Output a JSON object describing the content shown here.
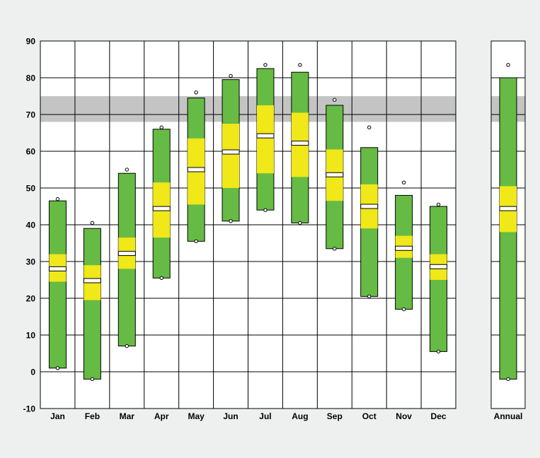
{
  "chart_data": {
    "type": "bar",
    "subtype": "floating-range-bar",
    "title": "",
    "xlabel": "",
    "ylabel": "",
    "ylim": [
      -10,
      90
    ],
    "yticks": [
      -10,
      0,
      10,
      20,
      30,
      40,
      50,
      60,
      70,
      80,
      90
    ],
    "grid": true,
    "comfort_band": [
      68,
      75
    ],
    "categories": [
      "Jan",
      "Feb",
      "Mar",
      "Apr",
      "May",
      "Jun",
      "Jul",
      "Aug",
      "Sep",
      "Oct",
      "Nov",
      "Dec"
    ],
    "series": [
      {
        "name": "record_low",
        "values": [
          1,
          -2,
          7,
          25.5,
          35.5,
          41,
          44,
          40.5,
          33.5,
          20.5,
          17,
          5.5
        ]
      },
      {
        "name": "range_low",
        "values": [
          1,
          -2,
          7,
          25.5,
          35.5,
          41,
          44,
          40.5,
          33.5,
          20.5,
          17,
          5.5
        ]
      },
      {
        "name": "mid_low",
        "values": [
          24.5,
          19.5,
          28,
          36.5,
          45.5,
          50,
          54,
          53,
          46.5,
          39,
          31,
          25
        ]
      },
      {
        "name": "mean",
        "values": [
          28,
          24.8,
          32.2,
          44.4,
          55,
          59.8,
          64.2,
          62.2,
          53.6,
          45,
          33.6,
          28.6
        ]
      },
      {
        "name": "mid_high",
        "values": [
          32,
          29,
          36.5,
          51.5,
          63.5,
          67.5,
          72.5,
          70.5,
          60.5,
          51,
          37,
          32
        ]
      },
      {
        "name": "range_high",
        "values": [
          46.5,
          39,
          54,
          66,
          74.5,
          79.5,
          82.5,
          81.5,
          72.5,
          61,
          48,
          45
        ]
      },
      {
        "name": "record_high",
        "values": [
          47,
          40.5,
          55,
          66.5,
          76,
          80.5,
          83.5,
          83.5,
          74,
          66.5,
          51.5,
          45.5
        ]
      }
    ],
    "annual": {
      "category": "Annual",
      "record_low": -2,
      "range_low": -2,
      "mid_low": 38,
      "mean": 44.4,
      "mid_high": 50.5,
      "range_high": 80,
      "record_high": 83.5
    },
    "colors": {
      "range": "#66bb44",
      "mid": "#f0e818",
      "band": "#c4c4c4",
      "grid": "#000000",
      "background": "#ffffff"
    }
  }
}
